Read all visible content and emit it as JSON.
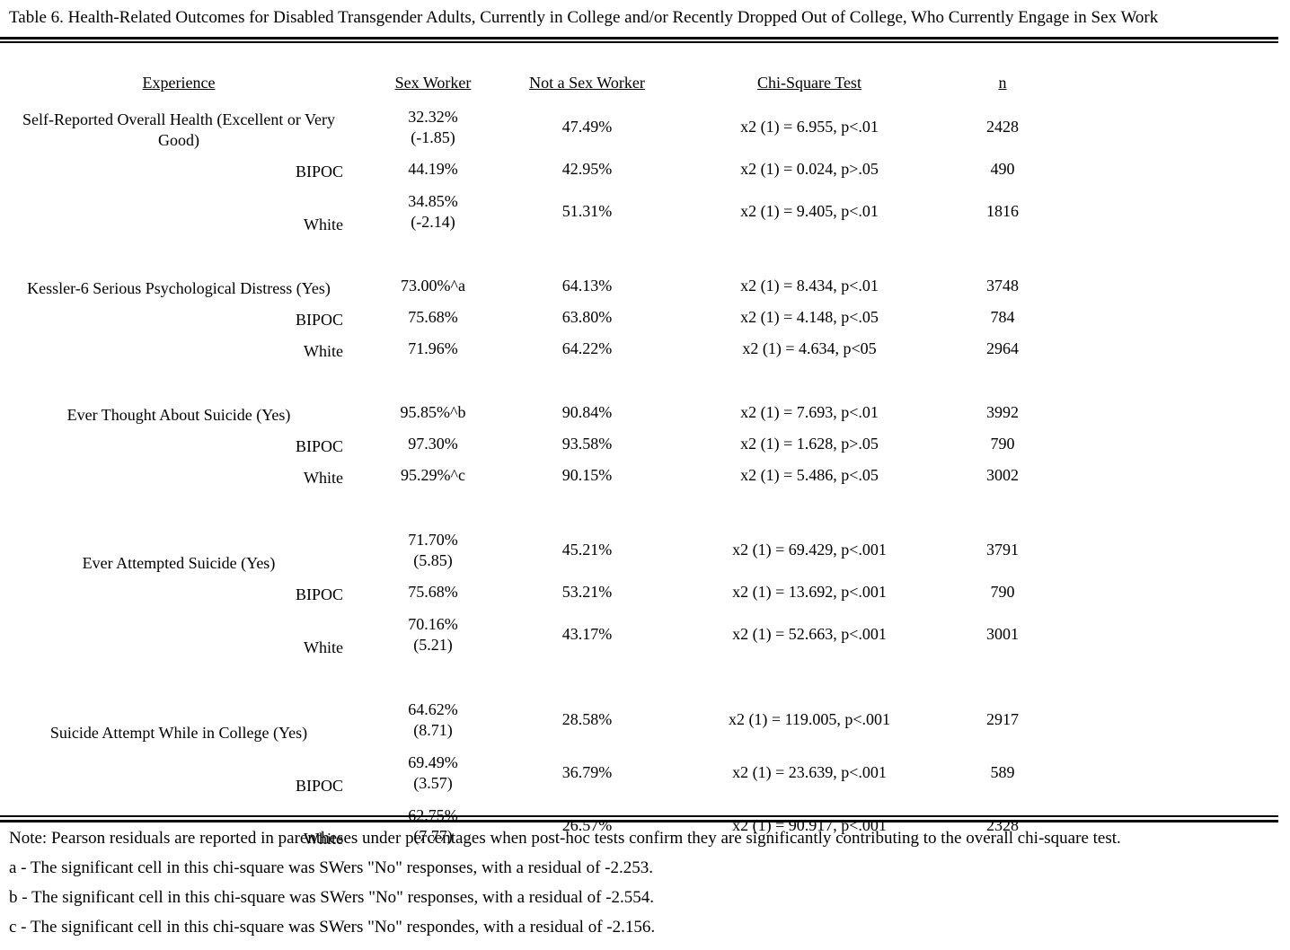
{
  "colors": {
    "text": "#000000",
    "background": "#ffffff"
  },
  "title": "Table 6. Health-Related Outcomes for Disabled Transgender Adults, Currently in College and/or Recently Dropped Out of College, Who Currently Engage in Sex Work",
  "table": {
    "columns": [
      "Experience",
      "Sex Worker",
      "Not a Sex Worker",
      "Chi-Square Test",
      "n"
    ],
    "rows": [
      {
        "type": "main",
        "label": "Self-Reported Overall Health (Excellent or Very Good)",
        "sw": "32.32%",
        "sw2": "(-1.85)",
        "nsw": "47.49%",
        "chi": "x2 (1) = 6.955, p<.01",
        "n": "2428"
      },
      {
        "type": "sub",
        "label": "BIPOC",
        "sw": "44.19%",
        "sw2": "",
        "nsw": "42.95%",
        "chi": "x2 (1) = 0.024, p>.05",
        "n": "490"
      },
      {
        "type": "sub",
        "label": "White",
        "sw": "34.85%",
        "sw2": "(-2.14)",
        "nsw": "51.31%",
        "chi": "x2 (1) = 9.405, p<.01",
        "n": "1816"
      },
      {
        "type": "spacer"
      },
      {
        "type": "main",
        "label": "Kessler-6 Serious Psychological Distress (Yes)",
        "sw": "73.00%^a",
        "sw2": "",
        "nsw": "64.13%",
        "chi": "x2 (1) = 8.434, p<.01",
        "n": "3748"
      },
      {
        "type": "sub",
        "label": "BIPOC",
        "sw": "75.68%",
        "sw2": "",
        "nsw": "63.80%",
        "chi": "x2 (1) = 4.148, p<.05",
        "n": "784"
      },
      {
        "type": "sub",
        "label": "White",
        "sw": "71.96%",
        "sw2": "",
        "nsw": "64.22%",
        "chi": "x2 (1) = 4.634, p<05",
        "n": "2964"
      },
      {
        "type": "spacer"
      },
      {
        "type": "main",
        "label": "Ever Thought About Suicide (Yes)",
        "sw": "95.85%^b",
        "sw2": "",
        "nsw": "90.84%",
        "chi": "x2 (1) = 7.693, p<.01",
        "n": "3992"
      },
      {
        "type": "sub",
        "label": "BIPOC",
        "sw": "97.30%",
        "sw2": "",
        "nsw": "93.58%",
        "chi": "x2 (1) = 1.628, p>.05",
        "n": "790"
      },
      {
        "type": "sub",
        "label": "White",
        "sw": "95.29%^c",
        "sw2": "",
        "nsw": "90.15%",
        "chi": "x2 (1) = 5.486, p<.05",
        "n": "3002"
      },
      {
        "type": "spacer"
      },
      {
        "type": "main",
        "label": "Ever Attempted Suicide (Yes)",
        "sw": "71.70%",
        "sw2": "(5.85)",
        "nsw": "45.21%",
        "chi": "x2 (1) = 69.429, p<.001",
        "n": "3791"
      },
      {
        "type": "sub",
        "label": "BIPOC",
        "sw": "75.68%",
        "sw2": "",
        "nsw": "53.21%",
        "chi": "x2 (1) = 13.692, p<.001",
        "n": "790"
      },
      {
        "type": "sub",
        "label": "White",
        "sw": "70.16%",
        "sw2": "(5.21)",
        "nsw": "43.17%",
        "chi": "x2 (1) = 52.663, p<.001",
        "n": "3001"
      },
      {
        "type": "spacer"
      },
      {
        "type": "main",
        "label": "Suicide Attempt While in College (Yes)",
        "sw": "64.62%",
        "sw2": "(8.71)",
        "nsw": "28.58%",
        "chi": "x2 (1) = 119.005, p<.001",
        "n": "2917"
      },
      {
        "type": "sub",
        "label": "BIPOC",
        "sw": "69.49%",
        "sw2": "(3.57)",
        "nsw": "36.79%",
        "chi": "x2 (1) = 23.639, p<.001",
        "n": "589"
      },
      {
        "type": "sub",
        "label": "White",
        "sw": "62.75%",
        "sw2": "(7.77)",
        "nsw": "26.57%",
        "chi": "x2 (1) = 90.917, p<.001",
        "n": "2328"
      }
    ]
  },
  "notes": [
    "Note: Pearson residuals are reported in parentheses under percentages when post-hoc tests confirm they are significantly contributing to the overall chi-square test.",
    "a - The significant cell in this chi-square was SWers \"No\" responses, with a residual of -2.253.",
    "b - The significant cell in this chi-square was SWers \"No\" responses, with a residual of -2.554.",
    "c - The significant cell in this chi-square was SWers \"No\" respondes, with a residual of -2.156."
  ]
}
